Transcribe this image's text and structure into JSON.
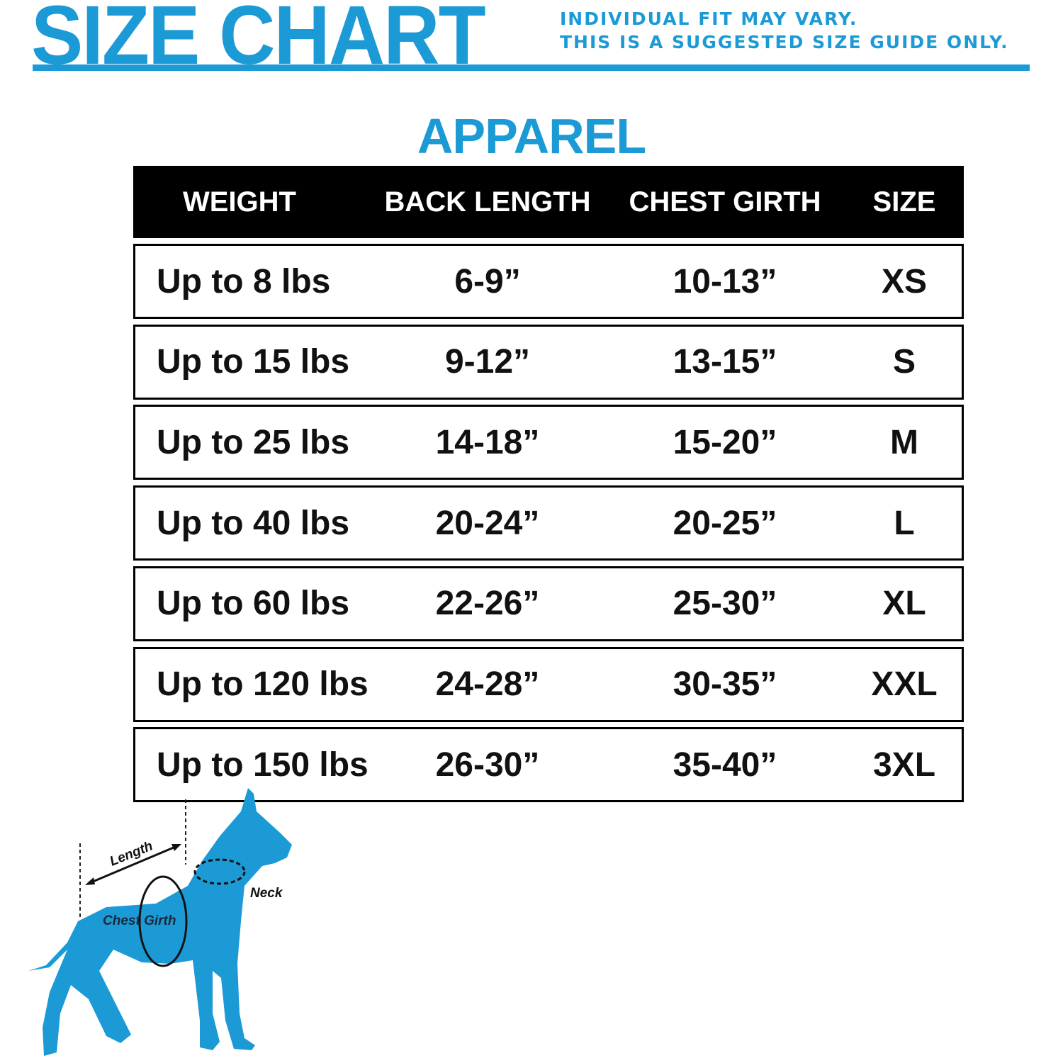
{
  "header": {
    "title": "SIZE CHART",
    "note_line1": "INDIVIDUAL FIT MAY VARY.",
    "note_line2": "THIS IS A SUGGESTED SIZE GUIDE ONLY.",
    "accent_color": "#1b9ad6"
  },
  "section_title": "APPAREL",
  "table": {
    "columns": [
      "WEIGHT",
      "BACK LENGTH",
      "CHEST GIRTH",
      "SIZE"
    ],
    "rows": [
      [
        "Up to 8 lbs",
        "6-9”",
        "10-13”",
        "XS"
      ],
      [
        "Up to 15 lbs",
        "9-12”",
        "13-15”",
        "S"
      ],
      [
        "Up to 25 lbs",
        "14-18”",
        "15-20”",
        "M"
      ],
      [
        "Up to 40 lbs",
        "20-24”",
        "20-25”",
        "L"
      ],
      [
        "Up to 60 lbs",
        "22-26”",
        "25-30”",
        "XL"
      ],
      [
        "Up to 120 lbs",
        "24-28”",
        "30-35”",
        "XXL"
      ],
      [
        "Up to 150 lbs",
        "26-30”",
        "35-40”",
        "3XL"
      ]
    ]
  },
  "diagram": {
    "length_label": "Length",
    "chest_label": "Chest Girth",
    "neck_label": "Neck",
    "dog_color": "#1b9ad6"
  }
}
